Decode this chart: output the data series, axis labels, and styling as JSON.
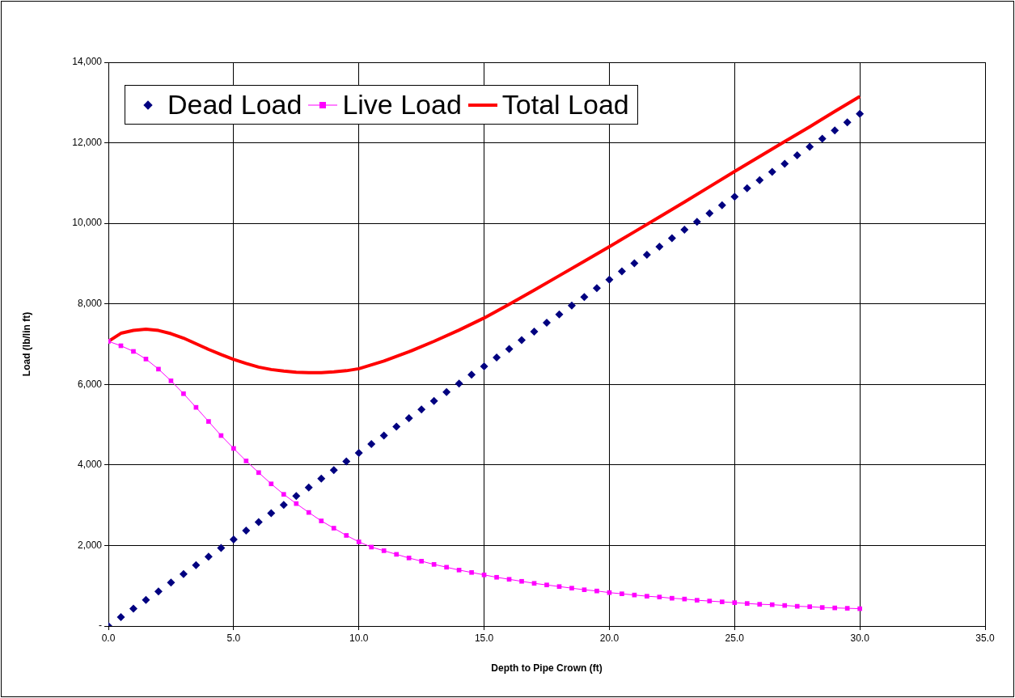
{
  "chart_data": {
    "type": "line",
    "xlabel": "Depth to Pipe Crown (ft)",
    "ylabel": "Load (lb/lin ft)",
    "xlim": [
      0,
      35
    ],
    "xticks": [
      {
        "value": 0,
        "label": "0.0"
      },
      {
        "value": 5,
        "label": "5.0"
      },
      {
        "value": 10,
        "label": "10.0"
      },
      {
        "value": 15,
        "label": "15.0"
      },
      {
        "value": 20,
        "label": "20.0"
      },
      {
        "value": 25,
        "label": "25.0"
      },
      {
        "value": 30,
        "label": "30.0"
      },
      {
        "value": 35,
        "label": "35.0"
      }
    ],
    "ylim": [
      0,
      14000
    ],
    "yticks": [
      {
        "value": 0,
        "label": "-"
      },
      {
        "value": 2000,
        "label": "2,000"
      },
      {
        "value": 4000,
        "label": "4,000"
      },
      {
        "value": 6000,
        "label": "6,000"
      },
      {
        "value": 8000,
        "label": "8,000"
      },
      {
        "value": 10000,
        "label": "10,000"
      },
      {
        "value": 12000,
        "label": "12,000"
      },
      {
        "value": 14000,
        "label": "14,000"
      }
    ],
    "grid": true,
    "legend": "top left",
    "x": [
      0,
      0.5,
      1,
      1.5,
      2,
      2.5,
      3,
      3.5,
      4,
      4.5,
      5,
      5.5,
      6,
      6.5,
      7,
      7.5,
      8,
      8.5,
      9,
      9.5,
      10,
      10.5,
      11,
      11.5,
      12,
      12.5,
      13,
      13.5,
      14,
      14.5,
      15,
      15.5,
      16,
      16.5,
      17,
      17.5,
      18,
      18.5,
      19,
      19.5,
      20,
      20.5,
      21,
      21.5,
      22,
      22.5,
      23,
      23.5,
      24,
      24.5,
      25,
      25.5,
      26,
      26.5,
      27,
      27.5,
      28,
      28.5,
      29,
      29.5,
      30
    ],
    "series": [
      {
        "name": "Dead Load",
        "type": "scatter",
        "marker": "diamond",
        "color": "#000080",
        "values": [
          0,
          220,
          430,
          650,
          860,
          1080,
          1290,
          1510,
          1720,
          1940,
          2150,
          2370,
          2580,
          2800,
          3010,
          3230,
          3440,
          3660,
          3870,
          4090,
          4300,
          4520,
          4730,
          4950,
          5160,
          5380,
          5590,
          5810,
          6020,
          6240,
          6450,
          6670,
          6880,
          7100,
          7310,
          7530,
          7740,
          7960,
          8170,
          8390,
          8600,
          8810,
          9010,
          9220,
          9420,
          9630,
          9840,
          10040,
          10250,
          10450,
          10660,
          10870,
          11070,
          11280,
          11480,
          11690,
          11900,
          12100,
          12310,
          12510,
          12720
        ]
      },
      {
        "name": "Live Load",
        "type": "line",
        "marker": "square",
        "color": "#ff00ff",
        "values": [
          7070,
          6960,
          6820,
          6630,
          6380,
          6090,
          5770,
          5430,
          5080,
          4730,
          4410,
          4100,
          3810,
          3530,
          3270,
          3040,
          2820,
          2610,
          2430,
          2250,
          2090,
          1960,
          1870,
          1780,
          1690,
          1610,
          1530,
          1460,
          1390,
          1330,
          1270,
          1210,
          1160,
          1110,
          1060,
          1020,
          980,
          940,
          900,
          870,
          830,
          800,
          770,
          740,
          720,
          690,
          670,
          640,
          620,
          600,
          580,
          560,
          540,
          530,
          510,
          490,
          480,
          460,
          450,
          440,
          430
        ]
      },
      {
        "name": "Total Load",
        "type": "line",
        "marker": "none",
        "color": "#ff0000",
        "x": [
          0,
          0.5,
          1,
          1.5,
          2,
          2.5,
          3,
          3.5,
          4,
          4.5,
          5,
          5.5,
          6,
          6.5,
          7,
          7.5,
          8,
          8.5,
          9,
          9.5,
          10,
          11,
          12,
          13,
          14,
          15,
          16,
          17,
          18,
          19,
          20,
          21,
          22,
          23,
          24,
          25,
          26,
          27,
          28,
          29,
          30
        ],
        "values": [
          7070,
          7270,
          7340,
          7370,
          7340,
          7260,
          7150,
          7010,
          6870,
          6740,
          6620,
          6520,
          6430,
          6370,
          6330,
          6300,
          6290,
          6290,
          6310,
          6340,
          6390,
          6580,
          6810,
          7070,
          7350,
          7650,
          7990,
          8340,
          8700,
          9060,
          9420,
          9790,
          10160,
          10530,
          10910,
          11290,
          11660,
          12030,
          12400,
          12780,
          13150
        ]
      }
    ]
  }
}
